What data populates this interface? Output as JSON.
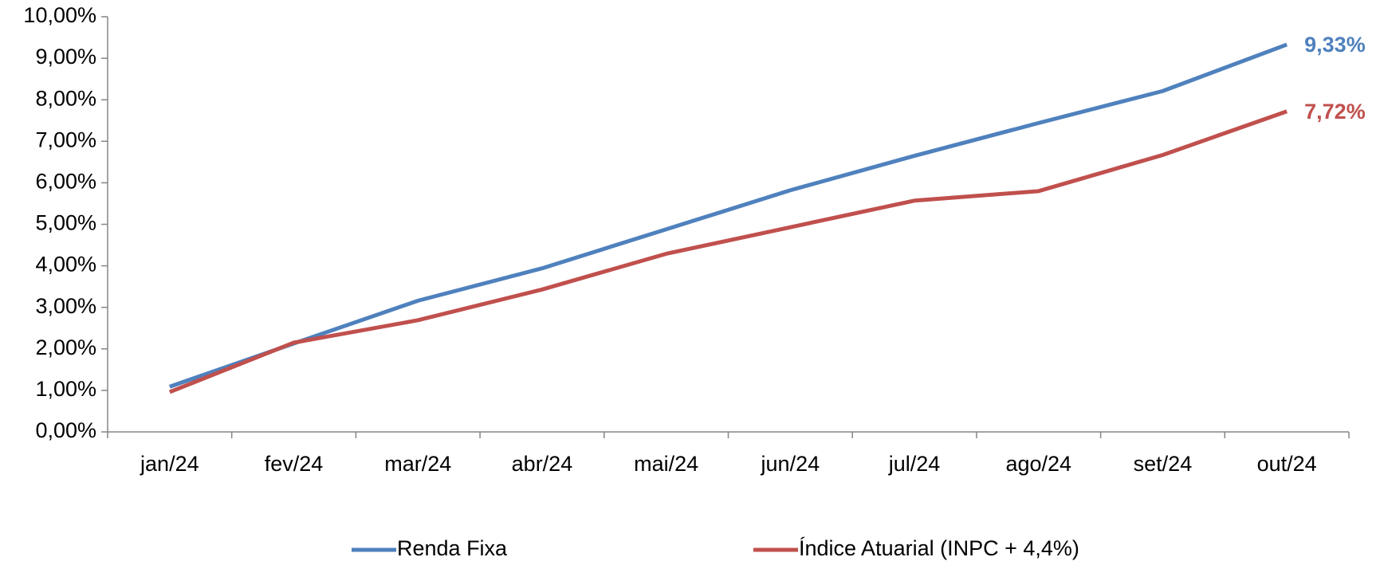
{
  "chart_data": {
    "type": "line",
    "categories": [
      "jan/24",
      "fev/24",
      "mar/24",
      "abr/24",
      "mai/24",
      "jun/24",
      "jul/24",
      "ago/24",
      "set/24",
      "out/24"
    ],
    "series": [
      {
        "name": "Renda Fixa",
        "color": "#4f81bd",
        "values": [
          1.09,
          2.13,
          3.16,
          3.94,
          4.88,
          5.82,
          6.65,
          7.44,
          8.21,
          9.33
        ],
        "value_labels": [
          null,
          null,
          null,
          null,
          null,
          null,
          null,
          null,
          null,
          "9,33%"
        ]
      },
      {
        "name": "Índice Atuarial (INPC + 4,4%)",
        "color": "#c0504d",
        "values": [
          0.96,
          2.15,
          2.69,
          3.43,
          4.29,
          4.93,
          5.57,
          5.8,
          6.67,
          7.72
        ],
        "value_labels": [
          null,
          null,
          null,
          null,
          null,
          null,
          null,
          null,
          null,
          "7,72%"
        ]
      }
    ],
    "ylim": [
      0,
      10
    ],
    "yticks": [
      {
        "value": 0,
        "label": "0,00%"
      },
      {
        "value": 1,
        "label": "1,00%"
      },
      {
        "value": 2,
        "label": "2,00%"
      },
      {
        "value": 3,
        "label": "3,00%"
      },
      {
        "value": 4,
        "label": "4,00%"
      },
      {
        "value": 5,
        "label": "5,00%"
      },
      {
        "value": 6,
        "label": "6,00%"
      },
      {
        "value": 7,
        "label": "7,00%"
      },
      {
        "value": 8,
        "label": "8,00%"
      },
      {
        "value": 9,
        "label": "9,00%"
      },
      {
        "value": 10,
        "label": "10,00%"
      }
    ],
    "grid": false,
    "legend": "bottom"
  }
}
